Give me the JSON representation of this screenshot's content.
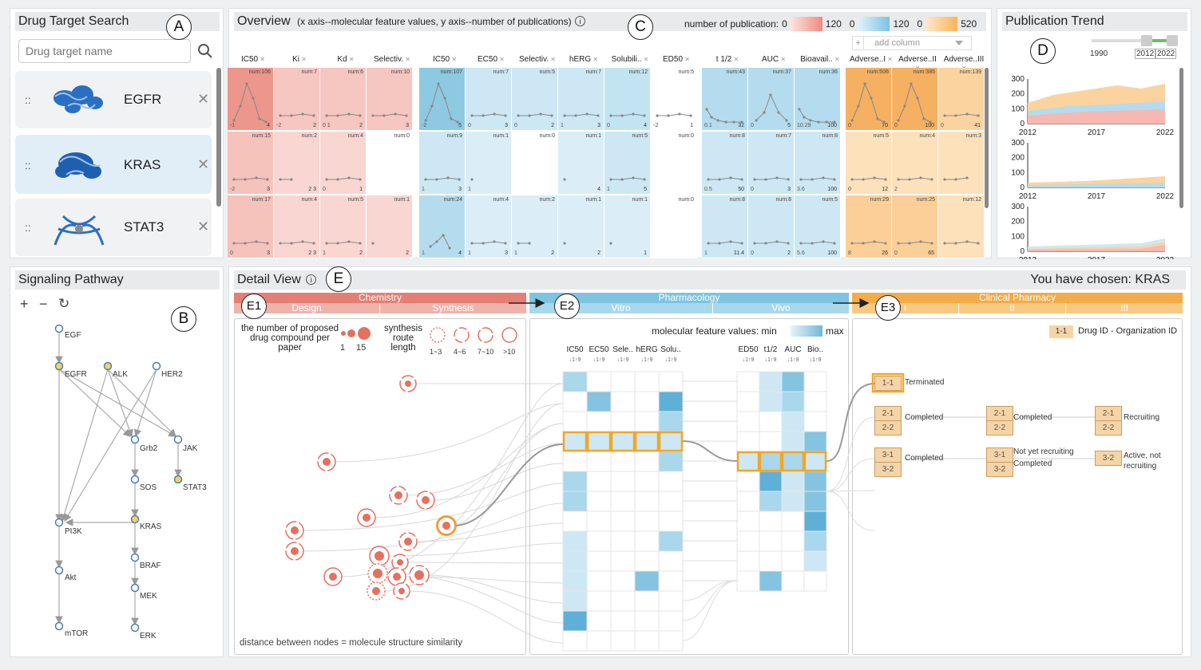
{
  "labels": {
    "A": "A",
    "B": "B",
    "C": "C",
    "D": "D",
    "E": "E",
    "E1": "E1",
    "E2": "E2",
    "E3": "E3"
  },
  "search": {
    "title": "Drug Target Search",
    "placeholder": "Drug target name",
    "targets": [
      {
        "name": "EGFR"
      },
      {
        "name": "KRAS"
      },
      {
        "name": "STAT3"
      }
    ],
    "drag": "::",
    "remove": "✕"
  },
  "pathway": {
    "title": "Signaling Pathway",
    "zoom_in": "+",
    "zoom_out": "−",
    "reset": "↻",
    "nodes": [
      "EGF",
      "EGFR",
      "ALK",
      "HER2",
      "Grb2",
      "JAK",
      "SOS",
      "STAT3",
      "KRAS",
      "PI3K",
      "BRAF",
      "Akt",
      "MEK",
      "mTOR",
      "ERK"
    ]
  },
  "overview": {
    "title": "Overview",
    "subtitle": "(x axis--molecular feature values, y axis--number of publications)",
    "legend_label": "number of publication:",
    "legends": [
      {
        "min": "0",
        "max": "120",
        "color": "#f08a82"
      },
      {
        "min": "0",
        "max": "120",
        "color": "#7cc4e2"
      },
      {
        "min": "0",
        "max": "520",
        "color": "#f8b55a"
      }
    ],
    "add_column": "add column",
    "plus": "+",
    "columns": [
      "IC50",
      "Ki",
      "Kd",
      "Selectiv.",
      "IC50",
      "EC50",
      "Selectiv.",
      "hERG",
      "Solubili..",
      "ED50",
      "t 1/2",
      "AUC",
      "Bioavail..",
      "Adverse..I",
      "Adverse..II",
      "Adverse..III"
    ],
    "rows": [
      [
        "num:106",
        "num:7",
        "num:6",
        "num:10",
        "num:107",
        "num:7",
        "num:5",
        "num:7",
        "num:12",
        "num:5",
        "num:43",
        "num:37",
        "num:36",
        "num:506",
        "num:385",
        "num:139"
      ],
      [
        "num:15",
        "num:2",
        "num:4",
        "num:0",
        "num:9",
        "num:1",
        "num:0",
        "num:1",
        "num:5",
        "num:0",
        "num:8",
        "num:7",
        "num:8",
        "num:5",
        "num:4",
        "num:3"
      ],
      [
        "num:17",
        "num:4",
        "num:5",
        "num:1",
        "num:24",
        "num:4",
        "num:2",
        "num:1",
        "num:1",
        "num:0",
        "num:8",
        "num:8",
        "num:5",
        "num:29",
        "num:25",
        "num:12"
      ]
    ],
    "ranges": [
      [
        [
          "-1",
          "4"
        ],
        [
          "-2",
          "2"
        ],
        [
          "0 1",
          "2"
        ],
        [
          "",
          "3"
        ],
        [
          "-2",
          "5"
        ],
        [
          "0",
          "3"
        ],
        [
          "0",
          "2"
        ],
        [
          "1",
          "3"
        ],
        [
          "0",
          "4"
        ],
        [
          "-2",
          "1"
        ],
        [
          "0.1",
          "32"
        ],
        [
          "0",
          "5"
        ],
        [
          "10.29",
          "100"
        ],
        [
          "0",
          "70"
        ],
        [
          "0",
          "100"
        ],
        [
          "0",
          "41"
        ]
      ],
      [
        [
          "-2",
          "3"
        ],
        [
          "",
          "2 3"
        ],
        [
          "0",
          "1"
        ],
        [
          "",
          ""
        ],
        [
          "1",
          "3"
        ],
        [
          "1",
          ""
        ],
        [
          "",
          ""
        ],
        [
          "",
          "4"
        ],
        [
          "1",
          "5"
        ],
        [
          "",
          ""
        ],
        [
          "0.5",
          "50"
        ],
        [
          "0",
          "3"
        ],
        [
          "3.6",
          "100"
        ],
        [
          "0",
          "12"
        ],
        [
          "2",
          ""
        ],
        [
          "",
          ""
        ]
      ],
      [
        [
          "0",
          "3"
        ],
        [
          "",
          "2 3"
        ],
        [
          "1",
          "2"
        ],
        [
          "",
          "2"
        ],
        [
          "1",
          "4"
        ],
        [
          "1",
          "3"
        ],
        [
          "1",
          "2"
        ],
        [
          "",
          "2"
        ],
        [
          "",
          "1"
        ],
        [
          "",
          ""
        ],
        [
          "1",
          "11.4"
        ],
        [
          "0",
          "2"
        ],
        [
          "5.6",
          "100"
        ],
        [
          "8",
          "26"
        ],
        [
          "0",
          "65"
        ],
        [
          "",
          ""
        ]
      ]
    ]
  },
  "trend": {
    "title": "Publication Trend",
    "range_start": "1990",
    "range_a": "2012",
    "range_b": "2022",
    "xticks": [
      "2012",
      "2017",
      "2022"
    ],
    "yticks": [
      "300",
      "200",
      "100",
      "0"
    ]
  },
  "detail": {
    "title": "Detail View",
    "chosen": "You have chosen: KRAS",
    "cat_chem": "Chemistry",
    "cat_pharm": "Pharmacology",
    "cat_clin": "Clinical Pharmacy",
    "sub_design": "Design",
    "sub_synth": "Synthesis",
    "sub_vitro": "Vitro",
    "sub_vivo": "Vivo",
    "sub_i": "I",
    "sub_ii": "II",
    "sub_iii": "III",
    "e1_size_label": "the number of proposed drug compound per paper",
    "e1_size_min": "1",
    "e1_size_max": "15",
    "e1_route_label": "synthesis route length",
    "e1_routes": [
      "1~3",
      "4~6",
      "7~10",
      ">10"
    ],
    "e1_footer": "distance between nodes = molecule structure similarity",
    "e2_legend": "molecular feature values: min",
    "e2_legend_max": "max",
    "sort_mark": "↓1↑9",
    "e2_cols_a": [
      "IC50",
      "EC50",
      "Sele..",
      "hERG",
      "Solu.."
    ],
    "e2_cols_b": [
      "ED50",
      "t1/2",
      "AUC",
      "Bio.."
    ],
    "e3_legend_code": "1-1",
    "e3_legend": "Drug ID - Organization ID",
    "trials": {
      "t11": "1-1",
      "t11s": "Terminated",
      "t21": "2-1",
      "t22": "2-2",
      "t21s": "Completed",
      "t21b": "2-1",
      "t22b": "2-2",
      "t21bs": "Completed",
      "t21c": "2-1",
      "t22c": "2-2",
      "t21cs": "Recruiting",
      "t31": "3-1",
      "t32": "3-2",
      "t31s": "Completed",
      "t31b": "3-1",
      "t31bs": "Not yet recruiting",
      "t32b": "3-2",
      "t32bs": "Completed",
      "t32c": "3-2",
      "t32cs": "Active, not recruiting"
    }
  }
}
